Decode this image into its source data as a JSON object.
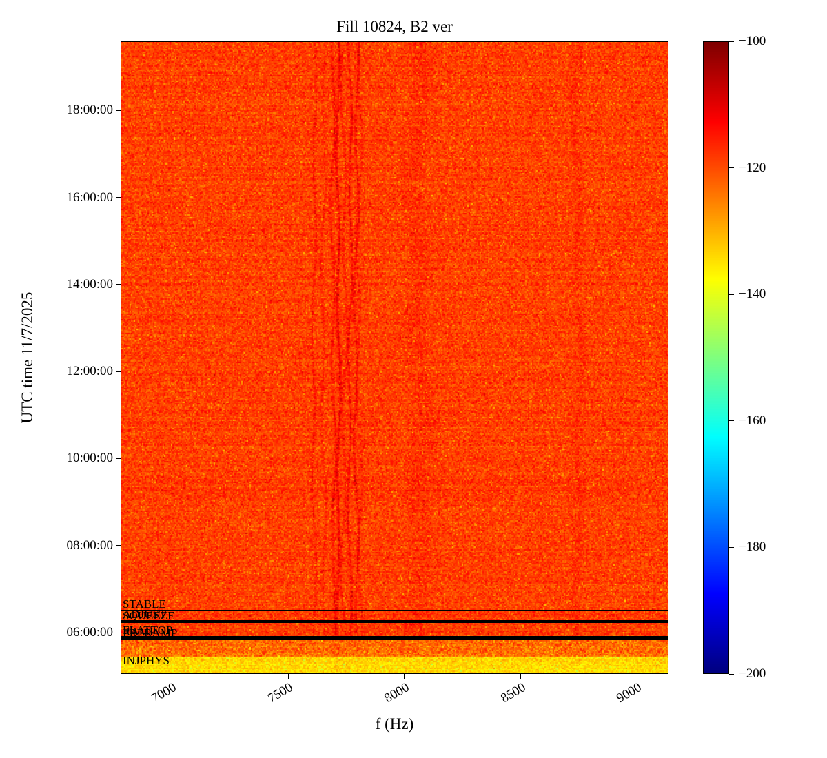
{
  "chart_data": {
    "type": "heatmap",
    "title": "Fill 10824, B2 ver",
    "xlabel": "f (Hz)",
    "ylabel": "UTC time 11/7/2025",
    "x_axis": {
      "range": [
        6780,
        9135
      ],
      "ticks": [
        {
          "value": 7000,
          "label": "7000"
        },
        {
          "value": 7500,
          "label": "7500"
        },
        {
          "value": 8000,
          "label": "8000"
        },
        {
          "value": 8500,
          "label": "8500"
        },
        {
          "value": 9000,
          "label": "9000"
        }
      ]
    },
    "y_axis": {
      "range_hours": [
        5.05,
        19.59
      ],
      "ticks": [
        {
          "hour": 18,
          "label": "18:00:00"
        },
        {
          "hour": 16,
          "label": "16:00:00"
        },
        {
          "hour": 14,
          "label": "14:00:00"
        },
        {
          "hour": 12,
          "label": "12:00:00"
        },
        {
          "hour": 10,
          "label": "10:00:00"
        },
        {
          "hour": 8,
          "label": "08:00:00"
        },
        {
          "hour": 6,
          "label": "06:00:00"
        }
      ]
    },
    "colorbar": {
      "range": [
        -200,
        -100
      ],
      "colormap": "jet",
      "ticks": [
        {
          "value": -100,
          "label": "−100"
        },
        {
          "value": -120,
          "label": "−120"
        },
        {
          "value": -140,
          "label": "−140"
        },
        {
          "value": -160,
          "label": "−160"
        },
        {
          "value": -180,
          "label": "−180"
        },
        {
          "value": -200,
          "label": "−200"
        }
      ]
    },
    "annotations": [
      {
        "label": "STABLE",
        "hour": 6.53,
        "line": true
      },
      {
        "label": "ADJUST",
        "hour": 6.29,
        "line": true
      },
      {
        "label": "SQUEEZE",
        "hour": 6.26,
        "line": true
      },
      {
        "label": "FLATTOP",
        "hour": 5.92,
        "line": true
      },
      {
        "label": "RAMP",
        "hour": 5.89,
        "line": true
      },
      {
        "label": "PRERAMP",
        "hour": 5.86,
        "line": true
      },
      {
        "label": "INJPHYS",
        "hour": 5.22,
        "line": false
      }
    ],
    "spectrogram": {
      "background_db": -118.5,
      "sigma_db": 2.6,
      "regions": [
        {
          "below_hour": 5.89,
          "level_db": -123,
          "sigma_db": 3.6
        },
        {
          "below_hour": 5.45,
          "level_db": -134,
          "sigma_db": 2.4
        }
      ],
      "streaks": [
        {
          "f": 7608,
          "strength": 3.5,
          "sigma": 5,
          "wander": 7
        },
        {
          "f": 7648,
          "strength": 2.5,
          "sigma": 5,
          "wander": 8
        },
        {
          "f": 7690,
          "strength": 4.5,
          "sigma": 5,
          "wander": 7
        },
        {
          "f": 7712,
          "strength": 7.0,
          "sigma": 6,
          "wander": 6
        },
        {
          "f": 7737,
          "strength": 3.5,
          "sigma": 5,
          "wander": 9
        },
        {
          "f": 7763,
          "strength": 6.0,
          "sigma": 5,
          "wander": 7
        },
        {
          "f": 7790,
          "strength": 5.0,
          "sigma": 5,
          "wander": 8
        },
        {
          "f": 7802,
          "strength": 3.0,
          "sigma": 4,
          "wander": 10
        },
        {
          "f": 8060,
          "strength": 1.6,
          "sigma": 45,
          "wander": 20
        },
        {
          "f": 8745,
          "strength": 2.0,
          "sigma": 16,
          "wander": 12
        }
      ]
    }
  }
}
